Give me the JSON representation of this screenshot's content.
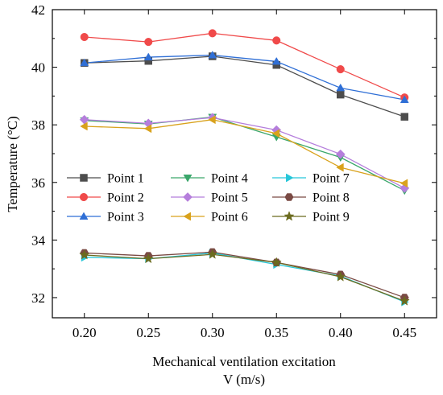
{
  "chart_data": {
    "type": "line",
    "x": [
      0.2,
      0.25,
      0.3,
      0.35,
      0.4,
      0.45
    ],
    "xticks": [
      "0.20",
      "0.25",
      "0.30",
      "0.35",
      "0.40",
      "0.45"
    ],
    "yticks": [
      "32",
      "34",
      "36",
      "38",
      "40",
      "42"
    ],
    "xlim": [
      0.175,
      0.475
    ],
    "ylim": [
      31.3,
      42
    ],
    "xlabel": "Mechanical ventilation excitation",
    "xlabel2": "V (m/s)",
    "ylabel": "Temperature (°C)",
    "grid": false,
    "legend_position": "middle-left, three columns",
    "series": [
      {
        "name": "Point 1",
        "color": "#4d4d4d",
        "marker": "square",
        "values": [
          40.15,
          40.22,
          40.38,
          40.08,
          39.05,
          38.28
        ]
      },
      {
        "name": "Point 2",
        "color": "#f04a4a",
        "marker": "circle",
        "values": [
          41.05,
          40.88,
          41.18,
          40.93,
          39.93,
          38.95
        ]
      },
      {
        "name": "Point 3",
        "color": "#2f6fd6",
        "marker": "triangle-up",
        "values": [
          40.15,
          40.35,
          40.42,
          40.2,
          39.28,
          38.87
        ]
      },
      {
        "name": "Point 4",
        "color": "#3aa66a",
        "marker": "triangle-down",
        "values": [
          38.15,
          38.03,
          38.27,
          37.58,
          36.87,
          35.72
        ]
      },
      {
        "name": "Point 5",
        "color": "#b57edc",
        "marker": "diamond",
        "values": [
          38.18,
          38.05,
          38.25,
          37.82,
          36.98,
          35.8
        ]
      },
      {
        "name": "Point 6",
        "color": "#d9a21c",
        "marker": "triangle-left",
        "values": [
          37.95,
          37.87,
          38.18,
          37.7,
          36.52,
          35.97
        ]
      },
      {
        "name": "Point 7",
        "color": "#26c6d9",
        "marker": "triangle-right",
        "values": [
          33.4,
          33.35,
          33.55,
          33.15,
          32.75,
          31.85
        ]
      },
      {
        "name": "Point 8",
        "color": "#7a4a44",
        "marker": "hexagon",
        "values": [
          33.55,
          33.45,
          33.58,
          33.22,
          32.8,
          32.0
        ]
      },
      {
        "name": "Point 9",
        "color": "#6b6b1f",
        "marker": "star",
        "values": [
          33.48,
          33.35,
          33.5,
          33.22,
          32.72,
          31.88
        ]
      }
    ]
  }
}
